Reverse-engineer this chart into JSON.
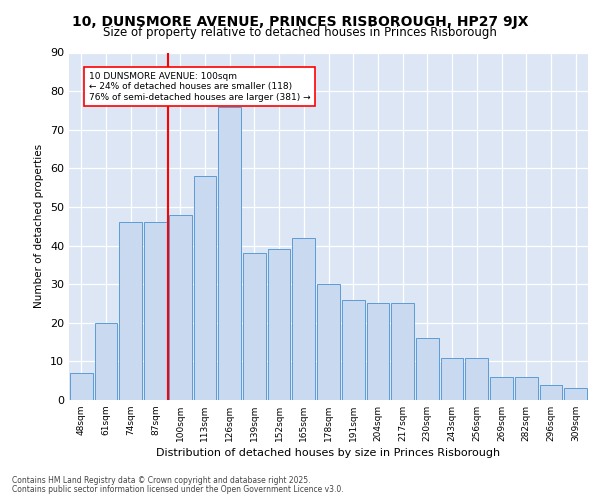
{
  "title_line1": "10, DUNSMORE AVENUE, PRINCES RISBOROUGH, HP27 9JX",
  "title_line2": "Size of property relative to detached houses in Princes Risborough",
  "xlabel": "Distribution of detached houses by size in Princes Risborough",
  "ylabel": "Number of detached properties",
  "categories": [
    "48sqm",
    "61sqm",
    "74sqm",
    "87sqm",
    "100sqm",
    "113sqm",
    "126sqm",
    "139sqm",
    "152sqm",
    "165sqm",
    "178sqm",
    "191sqm",
    "204sqm",
    "217sqm",
    "230sqm",
    "243sqm",
    "256sqm",
    "269sqm",
    "282sqm",
    "296sqm",
    "309sqm"
  ],
  "bar_values": [
    7,
    20,
    46,
    46,
    48,
    58,
    76,
    38,
    39,
    42,
    30,
    26,
    25,
    25,
    16,
    11,
    11,
    6,
    6,
    4,
    3
  ],
  "bar_color": "#c9d9f0",
  "bar_edgecolor": "#5b9bd5",
  "vline_x": 4,
  "vline_color": "red",
  "annotation_text": "10 DUNSMORE AVENUE: 100sqm\n← 24% of detached houses are smaller (118)\n76% of semi-detached houses are larger (381) →",
  "annotation_box_color": "white",
  "annotation_box_edgecolor": "red",
  "plot_background": "#dce6f5",
  "footer_line1": "Contains HM Land Registry data © Crown copyright and database right 2025.",
  "footer_line2": "Contains public sector information licensed under the Open Government Licence v3.0.",
  "ylim": [
    0,
    90
  ],
  "yticks": [
    0,
    10,
    20,
    30,
    40,
    50,
    60,
    70,
    80,
    90
  ]
}
